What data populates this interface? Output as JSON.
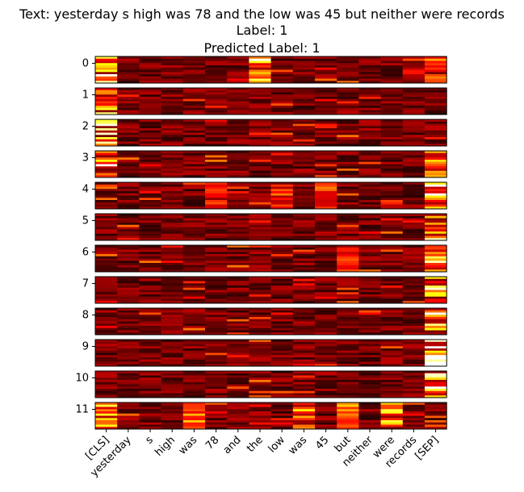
{
  "title_lines": [
    "Text: yesterday s high was 78 and the low was 45 but neither were records",
    "Label: 1",
    "Predicted Label: 1"
  ],
  "chart_data": {
    "type": "heatmap",
    "colormap": "hot",
    "x_tokens": [
      "[CLS]",
      "yesterday",
      "s",
      "high",
      "was",
      "78",
      "and",
      "the",
      "low",
      "was",
      "45",
      "but",
      "neither",
      "were",
      "records",
      "[SEP]"
    ],
    "layers": [
      "0",
      "1",
      "2",
      "3",
      "4",
      "5",
      "6",
      "7",
      "8",
      "9",
      "10",
      "11"
    ],
    "rows_per_layer": 12,
    "highlights": [
      {
        "layer": "0",
        "tokens": [
          "[CLS]"
        ],
        "level": 0.9
      },
      {
        "layer": "0",
        "tokens": [
          "the"
        ],
        "level": 0.85
      },
      {
        "layer": "0",
        "tokens": [
          "[SEP]"
        ],
        "level": 0.55
      },
      {
        "layer": "1",
        "tokens": [
          "[CLS]"
        ],
        "level": 0.95
      },
      {
        "layer": "2",
        "tokens": [
          "[CLS]"
        ],
        "level": 0.95
      },
      {
        "layer": "3",
        "tokens": [
          "[CLS]"
        ],
        "level": 0.9
      },
      {
        "layer": "3",
        "tokens": [
          "[SEP]"
        ],
        "level": 0.75
      },
      {
        "layer": "4",
        "tokens": [
          "[SEP]"
        ],
        "level": 0.95
      },
      {
        "layer": "4",
        "tokens": [
          "78",
          "45",
          "low"
        ],
        "level": 0.5
      },
      {
        "layer": "5",
        "tokens": [
          "[SEP]"
        ],
        "level": 0.95
      },
      {
        "layer": "6",
        "tokens": [
          "[SEP]"
        ],
        "level": 0.9
      },
      {
        "layer": "6",
        "tokens": [
          "but"
        ],
        "level": 0.45
      },
      {
        "layer": "7",
        "tokens": [
          "[SEP]"
        ],
        "level": 0.95
      },
      {
        "layer": "8",
        "tokens": [
          "[SEP]"
        ],
        "level": 0.95
      },
      {
        "layer": "9",
        "tokens": [
          "[SEP]"
        ],
        "level": 0.95
      },
      {
        "layer": "10",
        "tokens": [
          "[SEP]"
        ],
        "level": 0.9
      },
      {
        "layer": "11",
        "tokens": [
          "was",
          "but",
          "were",
          "[CLS]"
        ],
        "level": 0.7
      }
    ]
  }
}
